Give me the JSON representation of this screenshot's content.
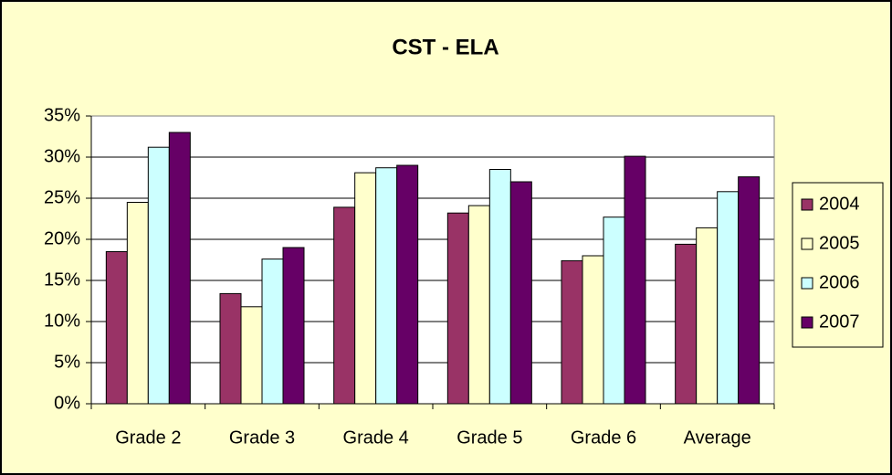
{
  "chart_data": {
    "type": "bar",
    "title": "CST - ELA",
    "categories": [
      "Grade 2",
      "Grade 3",
      "Grade 4",
      "Grade 5",
      "Grade 6",
      "Average"
    ],
    "series": [
      {
        "name": "2004",
        "color": "#993366",
        "values": [
          18.5,
          13.4,
          23.9,
          23.2,
          17.4,
          19.4
        ]
      },
      {
        "name": "2005",
        "color": "#ffffcc",
        "values": [
          24.5,
          11.8,
          28.1,
          24.1,
          18.0,
          21.4
        ]
      },
      {
        "name": "2006",
        "color": "#ccffff",
        "values": [
          31.2,
          17.6,
          28.7,
          28.5,
          22.7,
          25.8
        ]
      },
      {
        "name": "2007",
        "color": "#660066",
        "values": [
          33.0,
          19.0,
          29.0,
          27.0,
          30.1,
          27.6
        ]
      }
    ],
    "ylim": [
      0,
      35
    ],
    "yticks": [
      {
        "value": 0,
        "label": "0%"
      },
      {
        "value": 5,
        "label": "5%"
      },
      {
        "value": 10,
        "label": "10%"
      },
      {
        "value": 15,
        "label": "15%"
      },
      {
        "value": 20,
        "label": "20%"
      },
      {
        "value": 25,
        "label": "25%"
      },
      {
        "value": 30,
        "label": "30%"
      },
      {
        "value": 35,
        "label": "35%"
      }
    ],
    "grid": true,
    "legend": "right"
  }
}
